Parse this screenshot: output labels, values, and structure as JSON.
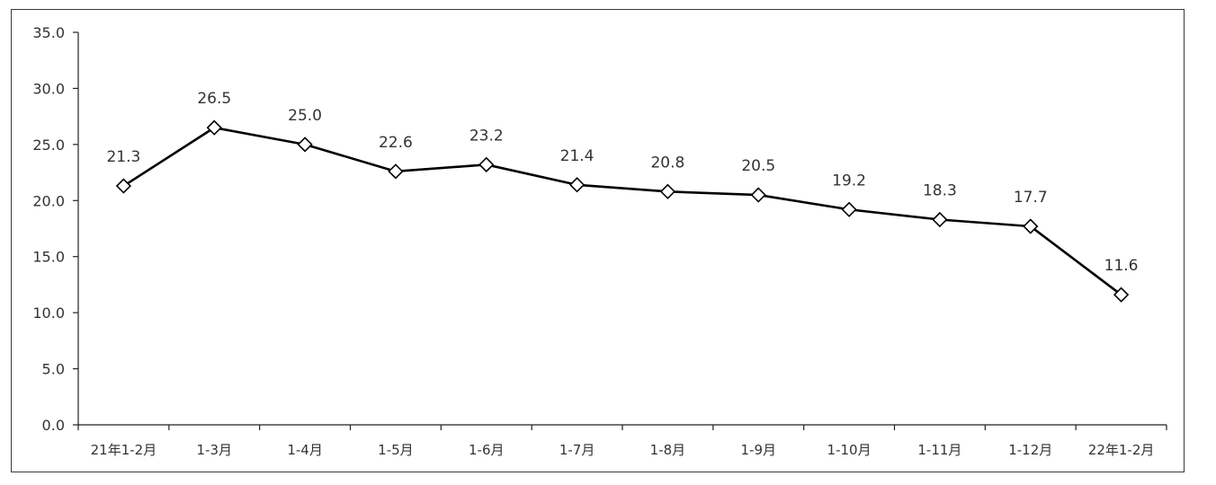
{
  "chart_data": {
    "type": "line",
    "title": "",
    "xlabel": "",
    "ylabel": "",
    "ylim": [
      0,
      35
    ],
    "yticks": [
      "0.0",
      "5.0",
      "10.0",
      "15.0",
      "20.0",
      "25.0",
      "30.0",
      "35.0"
    ],
    "categories": [
      "21年1-2月",
      "1-3月",
      "1-4月",
      "1-5月",
      "1-6月",
      "1-7月",
      "1-8月",
      "1-9月",
      "1-10月",
      "1-11月",
      "1-12月",
      "22年1-2月"
    ],
    "series": [
      {
        "values": [
          21.3,
          26.5,
          25.0,
          22.6,
          23.2,
          21.4,
          20.8,
          20.5,
          19.2,
          18.3,
          17.7,
          11.6
        ],
        "labels": [
          "21.3",
          "26.5",
          "25.0",
          "22.6",
          "23.2",
          "21.4",
          "20.8",
          "20.5",
          "19.2",
          "18.3",
          "17.7",
          "11.6"
        ],
        "color": "#000000",
        "marker": "diamond"
      }
    ],
    "grid": false,
    "legend": "none"
  }
}
